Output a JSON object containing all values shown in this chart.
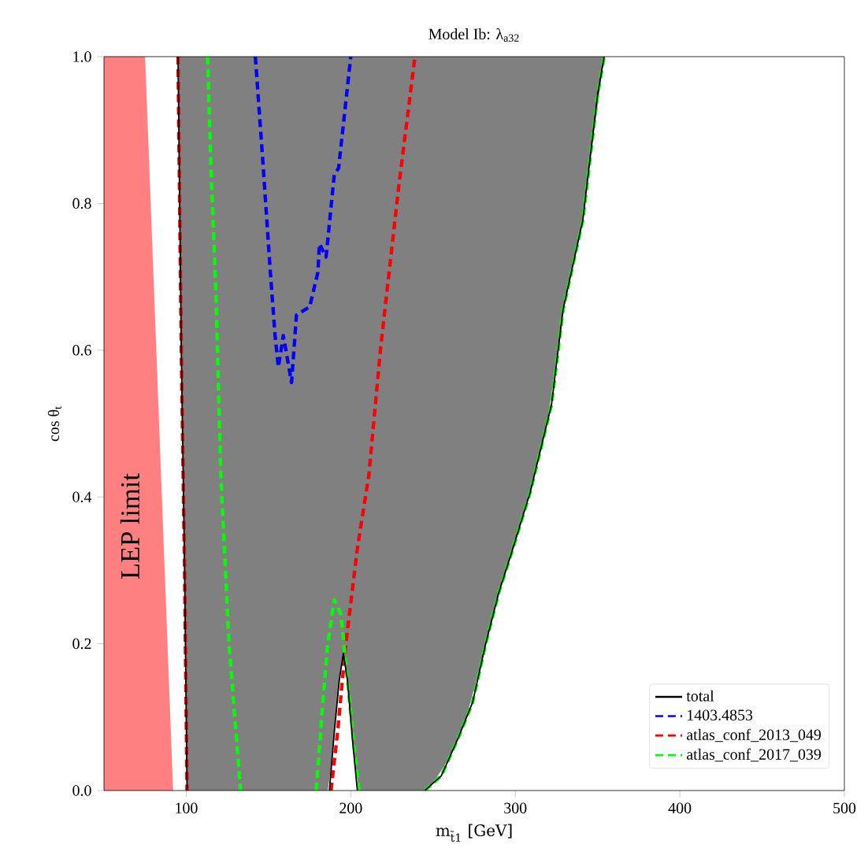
{
  "chart_data": {
    "type": "line",
    "title": "Model Ib: λ$_{a32}$",
    "xlabel": "m$_{t̃1}$ [GeV]",
    "ylabel": "cos θ$_{t}$",
    "xlim": [
      50,
      500
    ],
    "xticks": [
      100,
      200,
      300,
      400,
      500
    ],
    "ylim": [
      0,
      1
    ],
    "yticks": [
      {
        "value": 0,
        "label": "0.0"
      },
      {
        "value": 0.2,
        "label": "0.2"
      },
      {
        "value": 0.4,
        "label": "0.4"
      },
      {
        "value": 0.6,
        "label": "0.6"
      },
      {
        "value": 0.8,
        "label": "0.8"
      },
      {
        "value": 1,
        "label": "1.0"
      }
    ],
    "legend": "bottom right",
    "grid": false,
    "marker": "none",
    "annotations": [
      "LEP limit"
    ],
    "series": [
      {
        "type": "area",
        "color": "#808080",
        "x": [
          354,
          95,
          100.5,
          186,
          188.5,
          191.5,
          194.3,
          196.8,
          199.5,
          202.5,
          205,
          246,
          250,
          260,
          270,
          280,
          290,
          300,
          310,
          320,
          330,
          340,
          345
        ],
        "values": [
          1,
          1,
          0,
          0,
          0.04,
          0.115,
          0.17,
          0.17,
          0.11,
          0.035,
          0,
          0,
          0.01,
          0.045,
          0.098,
          0.18,
          0.27,
          0.34,
          0.415,
          0.51,
          0.665,
          0.767,
          0.85
        ]
      },
      {
        "type": "area",
        "color": "#ff8080",
        "x": [
          50,
          75,
          92,
          50
        ],
        "values": [
          1,
          1,
          0,
          0
        ]
      },
      {
        "name": "total",
        "color": "#000000",
        "line_style": "solid",
        "x": [
          95,
          97,
          99,
          100.5,
          null,
          187,
          190,
          193,
          195.5,
          198,
          201,
          204,
          null,
          245,
          255,
          265,
          274,
          282,
          290,
          298,
          309,
          322,
          329,
          341,
          350,
          354
        ],
        "values": [
          1,
          0.6,
          0.3,
          0,
          null,
          0,
          0.08,
          0.15,
          0.187,
          0.15,
          0.07,
          0,
          null,
          0,
          0.02,
          0.07,
          0.12,
          0.2,
          0.27,
          0.326,
          0.406,
          0.526,
          0.655,
          0.777,
          0.948,
          1
        ]
      },
      {
        "name": "1403.4853",
        "color": "#0000ff",
        "line_style": "dashed",
        "x": [
          142,
          146.6,
          151,
          154,
          156,
          159,
          164,
          167,
          175,
          180,
          181,
          185,
          190,
          192.6,
          200
        ],
        "values": [
          1,
          0.856,
          0.71,
          0.62,
          0.577,
          0.62,
          0.556,
          0.648,
          0.659,
          0.706,
          0.745,
          0.727,
          0.84,
          0.848,
          1
        ]
      },
      {
        "name": "atlas_conf_2013_049",
        "color": "#ff0000",
        "line_style": "dashed",
        "x": [
          95,
          97,
          99,
          100.5,
          null,
          188,
          192,
          197,
          204,
          211,
          218,
          229,
          239
        ],
        "values": [
          1,
          0.6,
          0.3,
          0,
          null,
          0,
          0.08,
          0.2,
          0.33,
          0.43,
          0.6,
          0.82,
          1
        ]
      },
      {
        "name": "atlas_conf_2017_039",
        "color": "#00ff00",
        "line_style": "dashed",
        "x": [
          113,
          115,
          118,
          121,
          126,
          133,
          null,
          179,
          183,
          186,
          190,
          194,
          198,
          202,
          205,
          null,
          245,
          255,
          265,
          274,
          282,
          290,
          298,
          309,
          322,
          329,
          341,
          350,
          354
        ],
        "values": [
          1,
          0.85,
          0.68,
          0.43,
          0.2,
          0,
          null,
          0,
          0.12,
          0.2,
          0.26,
          0.24,
          0.15,
          0.06,
          0,
          null,
          0,
          0.02,
          0.07,
          0.12,
          0.2,
          0.27,
          0.326,
          0.406,
          0.526,
          0.655,
          0.777,
          0.948,
          1
        ]
      }
    ]
  }
}
